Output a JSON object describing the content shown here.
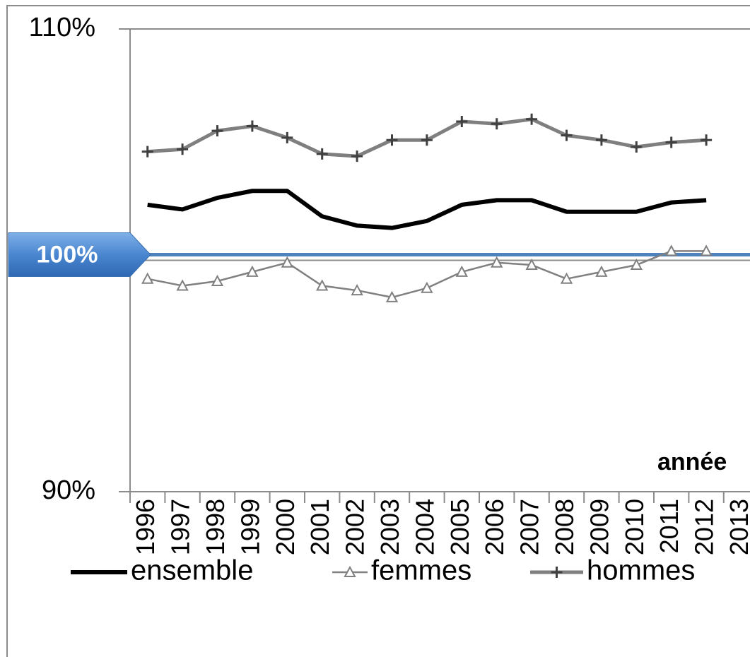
{
  "chart_data": {
    "type": "line",
    "x_label": "année",
    "categories": [
      "1996",
      "1997",
      "1998",
      "1999",
      "2000",
      "2001",
      "2002",
      "2003",
      "2004",
      "2005",
      "2006",
      "2007",
      "2008",
      "2009",
      "2010",
      "2011",
      "2012",
      "2013"
    ],
    "series": [
      {
        "name": "ensemble",
        "color": "#000000",
        "marker": "none",
        "values": [
          102.4,
          102.2,
          102.7,
          103.0,
          103.0,
          101.9,
          101.5,
          101.4,
          101.7,
          102.4,
          102.6,
          102.6,
          102.1,
          102.1,
          102.1,
          102.5,
          102.6,
          null
        ]
      },
      {
        "name": "femmes",
        "color": "#808080",
        "marker": "triangle",
        "values": [
          99.2,
          98.9,
          99.1,
          99.5,
          99.9,
          98.9,
          98.7,
          98.4,
          98.8,
          99.5,
          99.9,
          99.8,
          99.2,
          99.5,
          99.8,
          100.4,
          100.4,
          null
        ]
      },
      {
        "name": "hommes",
        "color": "#7f7f7f",
        "marker": "plus",
        "values": [
          104.7,
          104.8,
          105.6,
          105.8,
          105.3,
          104.6,
          104.5,
          105.2,
          105.2,
          106.0,
          105.9,
          106.1,
          105.4,
          105.2,
          104.9,
          105.1,
          105.2,
          null
        ]
      }
    ],
    "ylim": [
      90,
      110
    ],
    "yticks": [
      {
        "value": 90,
        "label": "90%"
      },
      {
        "value": 110,
        "label": "110%"
      }
    ],
    "reference": {
      "value": 100,
      "label": "100%",
      "color": "#4f81bd"
    },
    "legend": "bottom"
  }
}
